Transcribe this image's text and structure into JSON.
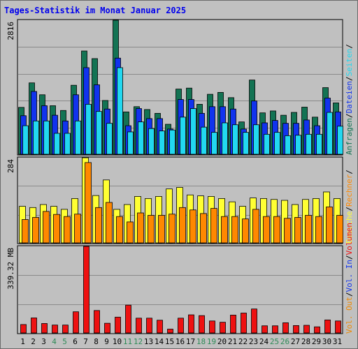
{
  "title": "Tages-Statistik im Monat Januar 2025",
  "colors": {
    "background": "#c0c0c0",
    "weekday_label": "#000000",
    "weekend_label": "#2e8b57",
    "anfragen": "#137353",
    "dateien": "#1133ee",
    "seiten": "#22d8f0",
    "besuche": "#ffff33",
    "rechner": "#ff8800",
    "volumen": "#ee1111",
    "vol_in": "#1133ee",
    "vol_out": "#ee8800"
  },
  "chart_data": [
    {
      "type": "bar",
      "title": "Tages-Statistik im Monat Januar 2025",
      "ymax_label": "2816",
      "ylim": [
        0,
        2816
      ],
      "categories": [
        "1",
        "2",
        "3",
        "4",
        "5",
        "6",
        "7",
        "8",
        "9",
        "10",
        "11",
        "12",
        "13",
        "14",
        "15",
        "16",
        "17",
        "18",
        "19",
        "20",
        "21",
        "22",
        "23",
        "24",
        "25",
        "26",
        "27",
        "28",
        "29",
        "30",
        "31"
      ],
      "weekend_days": [
        "4",
        "5",
        "11",
        "12",
        "18",
        "19",
        "25",
        "26"
      ],
      "series": [
        {
          "name": "Anfragen",
          "values": [
            985,
            1500,
            1250,
            1020,
            920,
            1450,
            2170,
            2010,
            1130,
            2816,
            890,
            1000,
            940,
            860,
            630,
            1370,
            1390,
            1050,
            1260,
            1300,
            1190,
            680,
            1560,
            870,
            910,
            820,
            880,
            990,
            780,
            1400,
            1080
          ]
        },
        {
          "name": "Dateien",
          "values": [
            810,
            1320,
            1020,
            820,
            700,
            1250,
            1820,
            1460,
            950,
            2020,
            600,
            960,
            750,
            750,
            530,
            1150,
            1150,
            860,
            1000,
            1000,
            950,
            530,
            1120,
            660,
            710,
            650,
            650,
            720,
            600,
            1180,
            890
          ]
        },
        {
          "name": "Seiten",
          "values": [
            600,
            700,
            700,
            440,
            440,
            700,
            1050,
            900,
            650,
            1820,
            470,
            680,
            540,
            490,
            510,
            780,
            960,
            570,
            460,
            660,
            620,
            460,
            620,
            420,
            460,
            390,
            400,
            420,
            420,
            880,
            590
          ]
        }
      ],
      "legend": [
        "Anfragen",
        "Dateien",
        "Seiten"
      ]
    },
    {
      "type": "bar",
      "ymax_label": "284",
      "ylim": [
        0,
        284
      ],
      "categories": [
        "1",
        "2",
        "3",
        "4",
        "5",
        "6",
        "7",
        "8",
        "9",
        "10",
        "11",
        "12",
        "13",
        "14",
        "15",
        "16",
        "17",
        "18",
        "19",
        "20",
        "21",
        "22",
        "23",
        "24",
        "25",
        "26",
        "27",
        "28",
        "29",
        "30",
        "31"
      ],
      "series": [
        {
          "name": "Besuche",
          "values": [
            122,
            118,
            128,
            122,
            112,
            148,
            284,
            158,
            210,
            112,
            128,
            155,
            148,
            155,
            180,
            185,
            160,
            157,
            155,
            148,
            137,
            122,
            150,
            148,
            145,
            142,
            128,
            145,
            148,
            170,
            148
          ]
        },
        {
          "name": "Rechner",
          "values": [
            78,
            85,
            105,
            95,
            88,
            96,
            268,
            118,
            135,
            88,
            70,
            100,
            92,
            92,
            96,
            118,
            110,
            98,
            115,
            88,
            88,
            80,
            112,
            88,
            88,
            82,
            85,
            92,
            88,
            120,
            92
          ]
        }
      ],
      "legend": [
        "Besuche",
        "Rechner"
      ]
    },
    {
      "type": "bar",
      "ymax_label": "339.32 MB",
      "ylim": [
        0,
        339.32
      ],
      "categories": [
        "1",
        "2",
        "3",
        "4",
        "5",
        "6",
        "7",
        "8",
        "9",
        "10",
        "11",
        "12",
        "13",
        "14",
        "15",
        "16",
        "17",
        "18",
        "19",
        "20",
        "21",
        "22",
        "23",
        "24",
        "25",
        "26",
        "27",
        "28",
        "29",
        "30",
        "31"
      ],
      "series": [
        {
          "name": "Volumen",
          "values": [
            33,
            59,
            37,
            31,
            31,
            83,
            339.32,
            88,
            38,
            62,
            109,
            58,
            58,
            50,
            15,
            58,
            71,
            68,
            47,
            42,
            70,
            78,
            94,
            28,
            28,
            40,
            29,
            30,
            24,
            51,
            47
          ]
        }
      ],
      "legend": [
        "Volumen",
        "Vol. In",
        "Vol. Out"
      ]
    }
  ],
  "right_legend": {
    "top": [
      "Anfragen",
      "/",
      "Dateien",
      "/",
      "Seiten",
      "/"
    ],
    "middle": [
      "Besuche",
      "/",
      "Rechner",
      "/"
    ],
    "bottom": [
      "Vol. Out",
      "/",
      "Vol. In",
      "/",
      "Volumen"
    ]
  }
}
